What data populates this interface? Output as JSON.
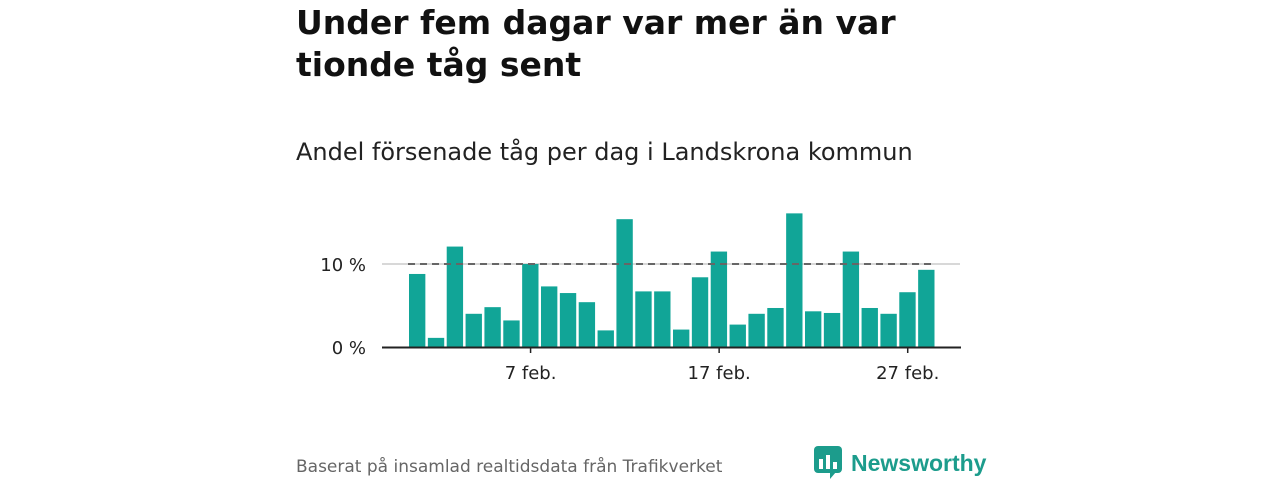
{
  "headline": "Under fem dagar var mer än var tionde tåg sent",
  "source": "Baserat på insamlad realtidsdata från Trafikverket",
  "brand": {
    "name": "Newsworthy"
  },
  "colors": {
    "bar": "#11a597",
    "reference_line": "#666666",
    "grid": "#cccccc",
    "axis": "#222222",
    "brand": "#1c9c8c"
  },
  "chart_data": {
    "type": "bar",
    "title": "Andel försenade tåg per dag i Landskrona kommun",
    "xlabel": "",
    "ylabel": "",
    "unit": "%",
    "x": [
      1,
      2,
      3,
      4,
      5,
      6,
      7,
      8,
      9,
      10,
      11,
      12,
      13,
      14,
      15,
      16,
      17,
      18,
      19,
      20,
      21,
      22,
      23,
      24,
      25,
      26,
      27,
      28
    ],
    "values": [
      8.8,
      1.1,
      12.1,
      4.0,
      4.8,
      3.2,
      10.0,
      7.3,
      6.5,
      5.4,
      2.0,
      15.4,
      6.7,
      6.7,
      2.1,
      8.4,
      11.5,
      2.7,
      4.0,
      4.7,
      16.1,
      4.3,
      4.1,
      11.5,
      4.7,
      4.0,
      6.6,
      9.3
    ],
    "reference_line": 10,
    "x_ticks": [
      {
        "x": 7,
        "label": "7 feb."
      },
      {
        "x": 17,
        "label": "17 feb."
      },
      {
        "x": 27,
        "label": "27 feb."
      }
    ],
    "y_ticks": [
      {
        "value": 0,
        "label": "0 %"
      },
      {
        "value": 10,
        "label": "10 %"
      }
    ],
    "ylim": [
      0,
      16.5
    ],
    "grid": true,
    "legend": "none"
  }
}
